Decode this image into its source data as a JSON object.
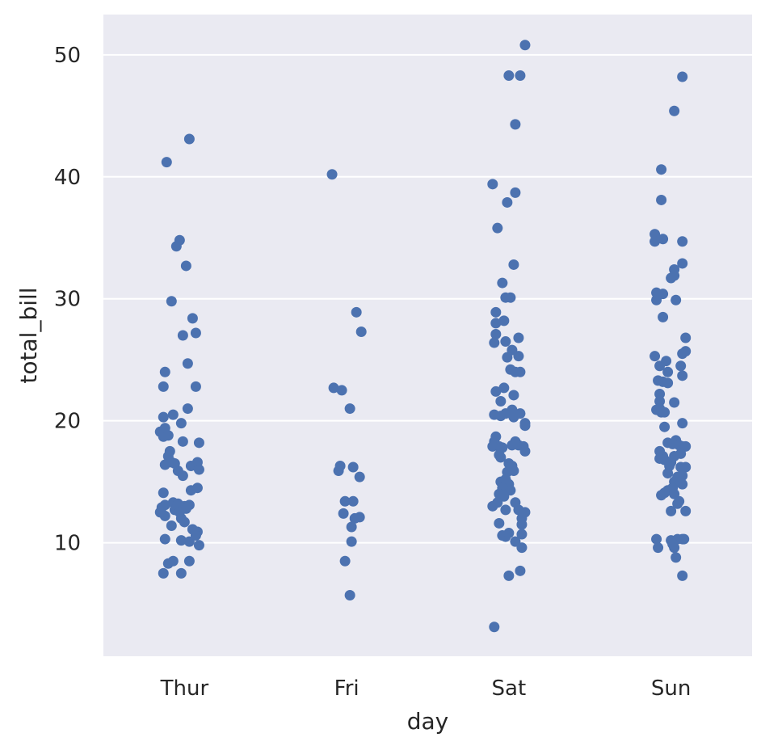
{
  "chart_data": {
    "type": "scatter",
    "title": "",
    "xlabel": "day",
    "ylabel": "total_bill",
    "categories": [
      "Thur",
      "Fri",
      "Sat",
      "Sun"
    ],
    "ylim": [
      0.7,
      53.3
    ],
    "yticks": [
      10,
      20,
      30,
      40,
      50
    ],
    "grid": true,
    "colors": {
      "background": "#eaeaf2",
      "grid": "#ffffff",
      "marker": "#4c72b0"
    },
    "series": [
      {
        "category": "Thur",
        "points": [
          [
            -0.11,
            41.2
          ],
          [
            0.03,
            43.1
          ],
          [
            -0.03,
            34.8
          ],
          [
            -0.05,
            34.3
          ],
          [
            0.01,
            32.7
          ],
          [
            -0.08,
            29.8
          ],
          [
            0.05,
            28.4
          ],
          [
            -0.01,
            27.0
          ],
          [
            0.07,
            27.2
          ],
          [
            0.02,
            24.7
          ],
          [
            -0.12,
            24.0
          ],
          [
            -0.13,
            22.8
          ],
          [
            0.07,
            22.8
          ],
          [
            0.02,
            21.0
          ],
          [
            -0.13,
            20.3
          ],
          [
            -0.07,
            20.5
          ],
          [
            -0.02,
            19.8
          ],
          [
            -0.15,
            19.1
          ],
          [
            -0.12,
            19.4
          ],
          [
            -0.13,
            18.7
          ],
          [
            -0.1,
            18.8
          ],
          [
            -0.01,
            18.3
          ],
          [
            0.09,
            18.2
          ],
          [
            -0.09,
            17.5
          ],
          [
            -0.1,
            17.1
          ],
          [
            -0.06,
            16.5
          ],
          [
            -0.12,
            16.4
          ],
          [
            -0.08,
            16.6
          ],
          [
            -0.04,
            15.9
          ],
          [
            0.04,
            16.3
          ],
          [
            0.08,
            16.6
          ],
          [
            0.09,
            16.0
          ],
          [
            -0.01,
            15.5
          ],
          [
            0.04,
            14.3
          ],
          [
            0.08,
            14.5
          ],
          [
            -0.13,
            14.1
          ],
          [
            -0.14,
            12.9
          ],
          [
            -0.12,
            13.1
          ],
          [
            -0.07,
            13.3
          ],
          [
            -0.04,
            13.2
          ],
          [
            0.0,
            13.0
          ],
          [
            0.01,
            12.8
          ],
          [
            -0.06,
            12.7
          ],
          [
            -0.03,
            12.5
          ],
          [
            -0.15,
            12.5
          ],
          [
            0.03,
            13.1
          ],
          [
            -0.12,
            12.2
          ],
          [
            -0.02,
            12.0
          ],
          [
            0.05,
            11.1
          ],
          [
            0.08,
            10.9
          ],
          [
            -0.08,
            11.4
          ],
          [
            0.0,
            11.7
          ],
          [
            -0.12,
            10.3
          ],
          [
            -0.02,
            10.2
          ],
          [
            0.03,
            10.1
          ],
          [
            0.07,
            10.6
          ],
          [
            0.09,
            9.8
          ],
          [
            -0.1,
            8.3
          ],
          [
            -0.07,
            8.5
          ],
          [
            0.03,
            8.5
          ],
          [
            -0.13,
            7.5
          ],
          [
            -0.02,
            7.5
          ]
        ]
      },
      {
        "category": "Fri",
        "points": [
          [
            -0.09,
            40.2
          ],
          [
            0.06,
            28.9
          ],
          [
            0.09,
            27.3
          ],
          [
            -0.08,
            22.7
          ],
          [
            -0.03,
            22.5
          ],
          [
            0.02,
            21.0
          ],
          [
            -0.05,
            15.9
          ],
          [
            -0.04,
            16.3
          ],
          [
            0.04,
            16.2
          ],
          [
            0.08,
            15.4
          ],
          [
            -0.01,
            13.4
          ],
          [
            0.04,
            13.4
          ],
          [
            -0.02,
            12.4
          ],
          [
            0.05,
            12.0
          ],
          [
            0.08,
            12.1
          ],
          [
            0.03,
            11.3
          ],
          [
            0.03,
            10.1
          ],
          [
            -0.01,
            8.5
          ],
          [
            0.02,
            5.7
          ]
        ]
      },
      {
        "category": "Sat",
        "points": [
          [
            0.1,
            50.8
          ],
          [
            0.0,
            48.3
          ],
          [
            0.07,
            48.3
          ],
          [
            0.04,
            44.3
          ],
          [
            -0.1,
            39.4
          ],
          [
            0.04,
            38.7
          ],
          [
            -0.01,
            37.9
          ],
          [
            -0.07,
            35.8
          ],
          [
            0.03,
            32.8
          ],
          [
            -0.04,
            31.3
          ],
          [
            0.01,
            30.1
          ],
          [
            -0.02,
            30.1
          ],
          [
            -0.08,
            28.9
          ],
          [
            -0.08,
            28.0
          ],
          [
            -0.03,
            28.2
          ],
          [
            -0.08,
            27.1
          ],
          [
            0.06,
            26.8
          ],
          [
            -0.09,
            26.4
          ],
          [
            -0.02,
            26.5
          ],
          [
            0.02,
            25.8
          ],
          [
            -0.01,
            25.2
          ],
          [
            0.06,
            25.3
          ],
          [
            0.01,
            24.2
          ],
          [
            0.04,
            24.0
          ],
          [
            0.07,
            24.0
          ],
          [
            -0.08,
            22.4
          ],
          [
            -0.03,
            22.7
          ],
          [
            -0.05,
            21.6
          ],
          [
            0.03,
            22.1
          ],
          [
            -0.09,
            20.5
          ],
          [
            -0.05,
            20.4
          ],
          [
            -0.02,
            20.6
          ],
          [
            0.02,
            20.9
          ],
          [
            0.03,
            20.3
          ],
          [
            0.07,
            20.6
          ],
          [
            0.1,
            19.8
          ],
          [
            0.1,
            19.6
          ],
          [
            -0.08,
            18.7
          ],
          [
            -0.09,
            18.3
          ],
          [
            -0.06,
            17.9
          ],
          [
            -0.04,
            17.8
          ],
          [
            0.02,
            18.0
          ],
          [
            0.04,
            18.3
          ],
          [
            0.06,
            18.0
          ],
          [
            0.09,
            17.9
          ],
          [
            0.1,
            17.5
          ],
          [
            -0.1,
            17.9
          ],
          [
            -0.05,
            17.0
          ],
          [
            -0.06,
            17.2
          ],
          [
            0.0,
            16.5
          ],
          [
            0.02,
            16.3
          ],
          [
            -0.01,
            15.8
          ],
          [
            0.03,
            15.9
          ],
          [
            -0.05,
            15.0
          ],
          [
            -0.02,
            15.2
          ],
          [
            0.0,
            14.8
          ],
          [
            -0.04,
            14.5
          ],
          [
            0.01,
            14.3
          ],
          [
            -0.06,
            14.0
          ],
          [
            -0.03,
            13.8
          ],
          [
            -0.1,
            13.0
          ],
          [
            -0.07,
            13.3
          ],
          [
            0.04,
            13.3
          ],
          [
            0.06,
            12.7
          ],
          [
            0.1,
            12.5
          ],
          [
            -0.02,
            12.7
          ],
          [
            0.08,
            12.0
          ],
          [
            -0.06,
            11.6
          ],
          [
            0.08,
            11.5
          ],
          [
            -0.04,
            10.6
          ],
          [
            -0.02,
            10.5
          ],
          [
            0.0,
            10.8
          ],
          [
            0.08,
            10.7
          ],
          [
            0.04,
            10.1
          ],
          [
            0.08,
            9.6
          ],
          [
            0.07,
            7.7
          ],
          [
            0.0,
            7.3
          ],
          [
            -0.09,
            3.1
          ]
        ]
      },
      {
        "category": "Sun",
        "points": [
          [
            0.07,
            48.2
          ],
          [
            0.02,
            45.4
          ],
          [
            -0.06,
            40.6
          ],
          [
            -0.06,
            38.1
          ],
          [
            -0.1,
            35.3
          ],
          [
            -0.05,
            34.9
          ],
          [
            -0.1,
            34.7
          ],
          [
            0.07,
            34.7
          ],
          [
            0.0,
            31.7
          ],
          [
            0.02,
            32.4
          ],
          [
            0.02,
            31.9
          ],
          [
            0.07,
            32.9
          ],
          [
            -0.09,
            30.5
          ],
          [
            -0.05,
            30.4
          ],
          [
            -0.09,
            29.9
          ],
          [
            0.03,
            29.9
          ],
          [
            -0.05,
            28.5
          ],
          [
            0.09,
            26.8
          ],
          [
            0.07,
            25.5
          ],
          [
            0.09,
            25.7
          ],
          [
            -0.1,
            25.3
          ],
          [
            -0.03,
            24.9
          ],
          [
            -0.07,
            24.5
          ],
          [
            0.06,
            24.5
          ],
          [
            -0.02,
            24.0
          ],
          [
            0.07,
            23.7
          ],
          [
            -0.08,
            23.3
          ],
          [
            -0.05,
            23.2
          ],
          [
            -0.02,
            23.1
          ],
          [
            -0.07,
            22.2
          ],
          [
            -0.07,
            21.6
          ],
          [
            0.02,
            21.5
          ],
          [
            -0.09,
            20.9
          ],
          [
            -0.07,
            21.0
          ],
          [
            -0.06,
            20.7
          ],
          [
            -0.04,
            20.7
          ],
          [
            0.07,
            19.8
          ],
          [
            -0.04,
            19.5
          ],
          [
            -0.02,
            18.2
          ],
          [
            0.01,
            18.1
          ],
          [
            0.03,
            18.4
          ],
          [
            0.05,
            18.0
          ],
          [
            0.07,
            17.9
          ],
          [
            0.09,
            17.9
          ],
          [
            -0.07,
            17.5
          ],
          [
            -0.05,
            17.1
          ],
          [
            -0.07,
            16.9
          ],
          [
            -0.04,
            16.8
          ],
          [
            0.0,
            16.6
          ],
          [
            0.02,
            17.1
          ],
          [
            0.06,
            17.3
          ],
          [
            -0.01,
            16.3
          ],
          [
            0.06,
            16.2
          ],
          [
            0.09,
            16.2
          ],
          [
            -0.02,
            15.7
          ],
          [
            0.04,
            15.4
          ],
          [
            0.07,
            15.5
          ],
          [
            0.02,
            15.0
          ],
          [
            0.06,
            14.9
          ],
          [
            -0.02,
            14.3
          ],
          [
            0.01,
            14.5
          ],
          [
            0.07,
            14.8
          ],
          [
            -0.06,
            13.9
          ],
          [
            -0.04,
            14.1
          ],
          [
            0.02,
            14.0
          ],
          [
            0.04,
            13.2
          ],
          [
            0.05,
            13.4
          ],
          [
            0.0,
            12.6
          ],
          [
            0.09,
            12.6
          ],
          [
            -0.09,
            10.3
          ],
          [
            0.0,
            10.2
          ],
          [
            0.04,
            10.3
          ],
          [
            0.07,
            10.3
          ],
          [
            0.08,
            10.3
          ],
          [
            0.01,
            9.9
          ],
          [
            0.02,
            9.6
          ],
          [
            -0.08,
            9.6
          ],
          [
            0.03,
            8.8
          ],
          [
            0.07,
            7.3
          ]
        ]
      }
    ]
  }
}
